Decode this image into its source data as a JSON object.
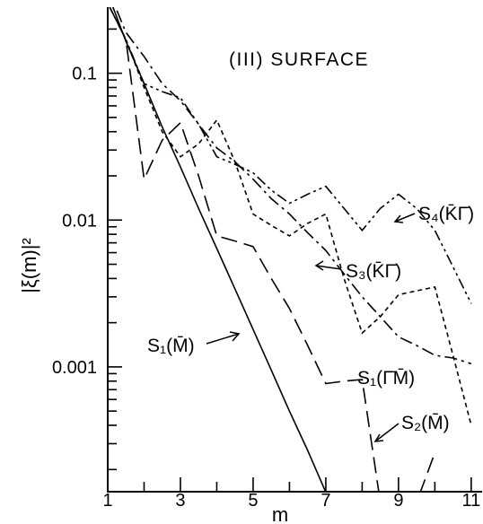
{
  "chart_data": {
    "type": "line",
    "title": "(III) SURFACE",
    "xlabel": "m",
    "ylabel": "|ξ(m)|²",
    "xlim": [
      1,
      11.3
    ],
    "ylim_log10": [
      -3.85,
      -0.55
    ],
    "yscale": "log",
    "x_ticks": [
      1,
      3,
      5,
      7,
      9,
      11
    ],
    "y_ticks": [
      {
        "value": 0.1,
        "label": "0.1"
      },
      {
        "value": 0.01,
        "label": "0.01"
      },
      {
        "value": 0.001,
        "label": "0.001"
      }
    ],
    "grid": false,
    "series": [
      {
        "name": "S₁(M̄)",
        "dash": "",
        "x": [
          1,
          1.5,
          2,
          2.5,
          3,
          3.5,
          4,
          4.5,
          5,
          5.5,
          6,
          6.5,
          7
        ],
        "y": [
          0.35,
          0.165,
          0.085,
          0.043,
          0.023,
          0.012,
          0.0064,
          0.0034,
          0.0018,
          0.00095,
          0.0005,
          0.00027,
          0.00014
        ]
      },
      {
        "name": "S₂(M̄)",
        "dash": "18,8",
        "x": [
          1,
          1.5,
          2,
          2.5,
          3,
          3.5,
          4,
          4.5,
          5,
          5.5,
          6,
          6.5,
          7,
          7.5,
          8,
          8.5,
          9,
          9.5,
          10
        ],
        "y": [
          0.3,
          0.17,
          0.019,
          0.035,
          0.046,
          0.02,
          0.0078,
          0.0072,
          0.0066,
          0.004,
          0.0025,
          0.0014,
          0.00077,
          0.0008,
          0.00082,
          0.00012,
          8e-05,
          0.00012,
          0.00026
        ]
      },
      {
        "name": "S₁(Γ̄M̄)",
        "dash": "14,5,3,5",
        "x": [
          1,
          1.5,
          2,
          2.5,
          3,
          3.5,
          4,
          4.5,
          5,
          5.5,
          6,
          6.5,
          7,
          7.5,
          8,
          8.5,
          9,
          9.5,
          10,
          10.5,
          11
        ],
        "y": [
          0.38,
          0.19,
          0.13,
          0.085,
          0.065,
          0.045,
          0.031,
          0.025,
          0.019,
          0.014,
          0.011,
          0.0082,
          0.0062,
          0.0043,
          0.003,
          0.0022,
          0.0016,
          0.0014,
          0.0012,
          0.00115,
          0.00105
        ]
      },
      {
        "name": "S₃(K̄Γ̄)",
        "dash": "5,4",
        "x": [
          1,
          1.5,
          2,
          2.5,
          3,
          3.5,
          4,
          4.5,
          5,
          5.5,
          6,
          6.5,
          7,
          7.5,
          8,
          8.5,
          9,
          9.5,
          10,
          10.5,
          11
        ],
        "y": [
          0.3,
          0.17,
          0.08,
          0.04,
          0.027,
          0.033,
          0.048,
          0.025,
          0.011,
          0.0092,
          0.0078,
          0.0095,
          0.011,
          0.004,
          0.0017,
          0.0022,
          0.0031,
          0.0033,
          0.0035,
          0.0012,
          0.0004
        ]
      },
      {
        "name": "S₄(K̄Γ̄)",
        "dash": "12,4,3,4,3,4",
        "x": [
          1,
          1.5,
          2,
          2.5,
          3,
          3.5,
          4,
          4.5,
          5,
          5.5,
          6,
          6.5,
          7,
          7.5,
          8,
          8.5,
          9,
          9.5,
          10,
          10.5,
          11
        ],
        "y": [
          0.3,
          0.17,
          0.085,
          0.075,
          0.068,
          0.045,
          0.027,
          0.024,
          0.021,
          0.016,
          0.013,
          0.015,
          0.017,
          0.012,
          0.0085,
          0.012,
          0.015,
          0.012,
          0.0085,
          0.0048,
          0.0027
        ]
      }
    ],
    "annotations": [
      {
        "text": "S₁(M̄)"
      },
      {
        "text": "S₂(M̄)"
      },
      {
        "text": "S₁(Γ̄M̄)"
      },
      {
        "text": "S₃(K̄Γ̄)"
      },
      {
        "text": "S₄(K̄Γ̄)"
      }
    ]
  }
}
